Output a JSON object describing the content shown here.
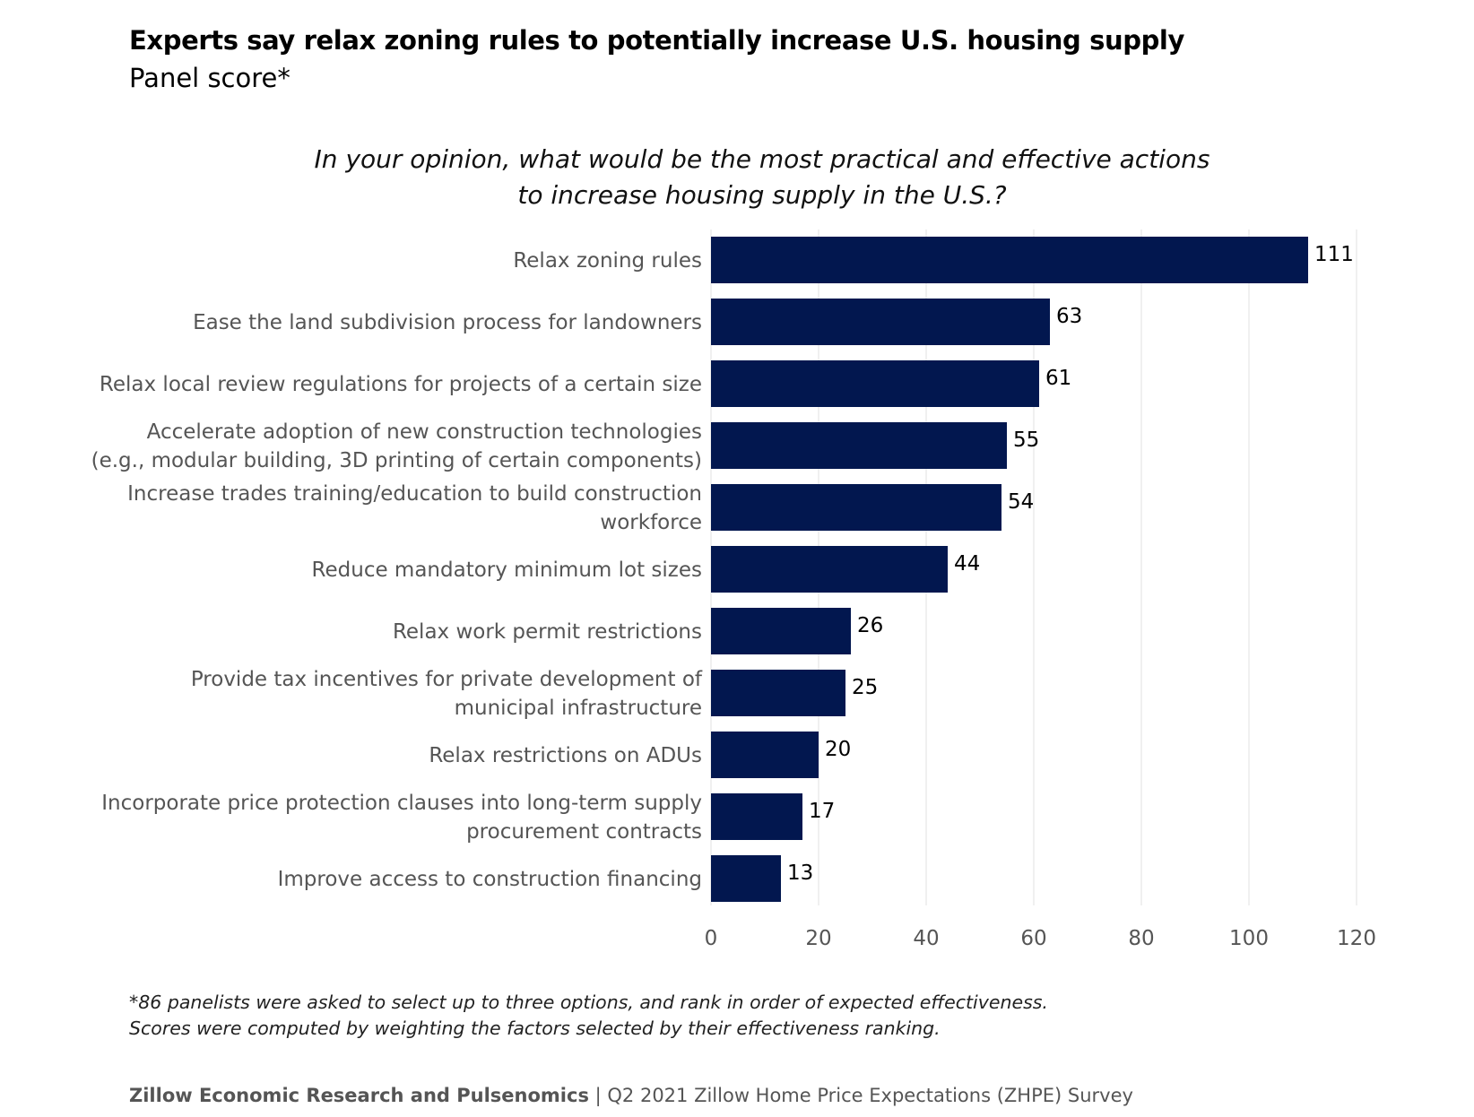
{
  "header": {
    "title": "Experts say relax zoning rules to potentially increase U.S. housing supply",
    "subtitle": "Panel score*"
  },
  "chart_data": {
    "type": "bar",
    "orientation": "horizontal",
    "title": "In your opinion, what would be the most practical and effective actions to increase housing supply in the U.S.?",
    "title_lines": [
      "In your opinion, what would be the most practical and effective actions",
      "to increase housing supply in the U.S.?"
    ],
    "categories": [
      [
        "Relax zoning rules"
      ],
      [
        "Ease the land subdivision process for landowners"
      ],
      [
        "Relax local review regulations for projects of a certain size"
      ],
      [
        "Accelerate adoption of new construction technologies",
        "(e.g., modular building, 3D printing of certain components)"
      ],
      [
        "Increase trades training/education to build construction",
        "workforce"
      ],
      [
        "Reduce mandatory minimum lot sizes"
      ],
      [
        "Relax work permit restrictions"
      ],
      [
        "Provide tax incentives for private development of",
        "municipal infrastructure"
      ],
      [
        "Relax restrictions on ADUs"
      ],
      [
        "Incorporate price protection clauses into long-term supply",
        "procurement contracts"
      ],
      [
        "Improve access to construction financing"
      ]
    ],
    "values": [
      111,
      63,
      61,
      55,
      54,
      44,
      26,
      25,
      20,
      17,
      13
    ],
    "xlim": [
      0,
      120
    ],
    "xticks": [
      "0",
      "20",
      "40",
      "60",
      "80",
      "100",
      "120"
    ],
    "grid": "vertical",
    "bar_color": "#02174f",
    "data_labels": true
  },
  "footnote": {
    "line1": "*86 panelists were asked to select up to three options, and rank in order of expected effectiveness.",
    "line2": "Scores were computed by weighting the factors selected by their effectiveness ranking."
  },
  "source": {
    "org": "Zillow Economic Research and Pulsenomics",
    "separator": " | ",
    "survey": "Q2 2021 Zillow Home Price Expectations (ZHPE) Survey"
  }
}
